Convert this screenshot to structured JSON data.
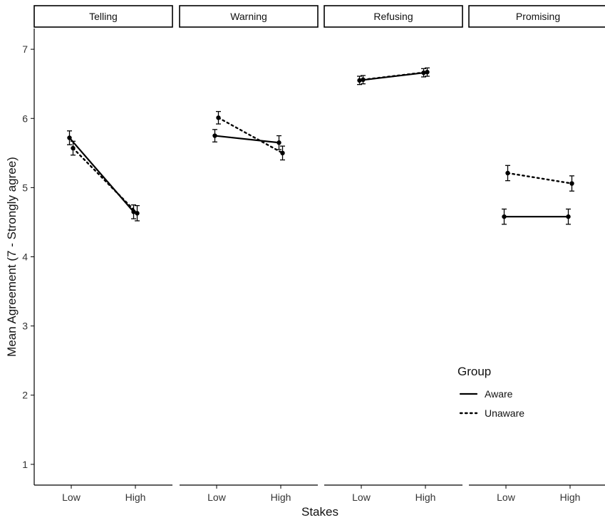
{
  "chart_data": {
    "type": "line",
    "xlabel": "Stakes",
    "ylabel": "Mean Agreement (7 - Strongly agree)",
    "ylim": [
      0.7,
      7.3
    ],
    "yticks": [
      1,
      2,
      3,
      4,
      5,
      6,
      7
    ],
    "categories": [
      "Low",
      "High"
    ],
    "grid": false,
    "legend": {
      "title": "Group",
      "placement": "inside-bottom-right",
      "entries": [
        {
          "label": "Aware",
          "linetype": "solid"
        },
        {
          "label": "Unaware",
          "linetype": "dotted"
        }
      ]
    },
    "panels": [
      {
        "title": "Telling",
        "series": [
          {
            "name": "Aware",
            "values": [
              5.72,
              4.65
            ],
            "errors": [
              0.1,
              0.1
            ]
          },
          {
            "name": "Unaware",
            "values": [
              5.57,
              4.63
            ],
            "errors": [
              0.1,
              0.11
            ]
          }
        ]
      },
      {
        "title": "Warning",
        "series": [
          {
            "name": "Aware",
            "values": [
              5.75,
              5.65
            ],
            "errors": [
              0.09,
              0.1
            ]
          },
          {
            "name": "Unaware",
            "values": [
              6.01,
              5.5
            ],
            "errors": [
              0.09,
              0.1
            ]
          }
        ]
      },
      {
        "title": "Refusing",
        "series": [
          {
            "name": "Aware",
            "values": [
              6.55,
              6.66
            ],
            "errors": [
              0.06,
              0.06
            ]
          },
          {
            "name": "Unaware",
            "values": [
              6.56,
              6.67
            ],
            "errors": [
              0.06,
              0.06
            ]
          }
        ]
      },
      {
        "title": "Promising",
        "series": [
          {
            "name": "Aware",
            "values": [
              4.58,
              4.58
            ],
            "errors": [
              0.11,
              0.11
            ]
          },
          {
            "name": "Unaware",
            "values": [
              5.21,
              5.06
            ],
            "errors": [
              0.11,
              0.11
            ]
          }
        ]
      }
    ],
    "colors": {
      "line": "#000000",
      "point": "#000000",
      "text": "#333333",
      "axis": "#000000"
    }
  }
}
